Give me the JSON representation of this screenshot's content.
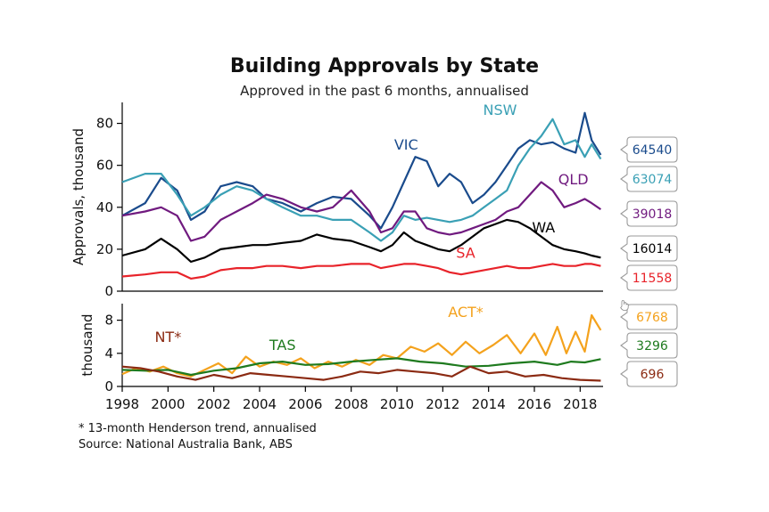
{
  "header": {
    "title": "Building Approvals by State",
    "subtitle": "Approved in the past 6 months, annualised"
  },
  "footer": {
    "note": "* 13-month Henderson trend, annualised",
    "source": "Source: National Australia Bank, ABS"
  },
  "colors": {
    "NSW": "#3aa0b5",
    "VIC": "#1a4b8c",
    "QLD": "#701a7f",
    "WA": "#000000",
    "SA": "#e8232a",
    "ACT": "#f4a21d",
    "TAS": "#1e7a1e",
    "NT": "#8b2a12"
  },
  "chart_data": [
    {
      "type": "line",
      "panel": "top",
      "ylabel": "Approvals, thousand",
      "xlim": [
        1998,
        2019
      ],
      "ylim": [
        0,
        90
      ],
      "yticks": [
        0,
        20,
        40,
        60,
        80
      ],
      "xticks": [
        1998,
        2000,
        2002,
        2004,
        2006,
        2008,
        2010,
        2012,
        2014,
        2016,
        2018
      ],
      "series": [
        {
          "name": "VIC",
          "latest": "64540",
          "label_x": 2010.4,
          "label_y": 67.5,
          "x": [
            1998,
            1999,
            1999.7,
            2000.4,
            2001,
            2001.6,
            2002.3,
            2003,
            2003.7,
            2004.3,
            2005,
            2005.8,
            2006.5,
            2007.2,
            2008,
            2008.8,
            2009.3,
            2009.8,
            2010.3,
            2010.8,
            2011.3,
            2011.8,
            2012.3,
            2012.8,
            2013.3,
            2013.8,
            2014.3,
            2014.8,
            2015.3,
            2015.8,
            2016.3,
            2016.8,
            2017.3,
            2017.8,
            2018.2,
            2018.5,
            2018.9
          ],
          "values": [
            36,
            42,
            54,
            48,
            34,
            38,
            50,
            52,
            50,
            44,
            42,
            38,
            42,
            45,
            44,
            36,
            30,
            40,
            52,
            64,
            62,
            50,
            56,
            52,
            42,
            46,
            52,
            60,
            68,
            72,
            70,
            71,
            68,
            66,
            85,
            72,
            65
          ]
        },
        {
          "name": "NSW",
          "latest": "63074",
          "label_x": 2014.5,
          "label_y": 84,
          "x": [
            1998,
            1999,
            1999.7,
            2000.4,
            2001,
            2001.6,
            2002.3,
            2003,
            2003.7,
            2004.3,
            2005,
            2005.8,
            2006.5,
            2007.2,
            2008,
            2008.8,
            2009.3,
            2009.8,
            2010.3,
            2010.8,
            2011.3,
            2011.8,
            2012.3,
            2012.8,
            2013.3,
            2013.8,
            2014.3,
            2014.8,
            2015.3,
            2015.8,
            2016.3,
            2016.8,
            2017.3,
            2017.8,
            2018.2,
            2018.5,
            2018.9
          ],
          "values": [
            52,
            56,
            56,
            46,
            36,
            40,
            46,
            50,
            48,
            44,
            40,
            36,
            36,
            34,
            34,
            28,
            24,
            28,
            36,
            34,
            35,
            34,
            33,
            34,
            36,
            40,
            44,
            48,
            60,
            68,
            74,
            82,
            70,
            72,
            64,
            70,
            63
          ]
        },
        {
          "name": "QLD",
          "latest": "39018",
          "label_x": 2017.7,
          "label_y": 51,
          "x": [
            1998,
            1999,
            1999.7,
            2000.4,
            2001,
            2001.6,
            2002.3,
            2003,
            2003.7,
            2004.3,
            2005,
            2005.8,
            2006.5,
            2007.2,
            2008,
            2008.8,
            2009.3,
            2009.8,
            2010.3,
            2010.8,
            2011.3,
            2011.8,
            2012.3,
            2012.8,
            2013.3,
            2013.8,
            2014.3,
            2014.8,
            2015.3,
            2015.8,
            2016.3,
            2016.8,
            2017.3,
            2017.8,
            2018.2,
            2018.5,
            2018.9
          ],
          "values": [
            36,
            38,
            40,
            36,
            24,
            26,
            34,
            38,
            42,
            46,
            44,
            40,
            38,
            40,
            48,
            38,
            28,
            30,
            38,
            38,
            30,
            28,
            27,
            28,
            30,
            32,
            34,
            38,
            40,
            46,
            52,
            48,
            40,
            42,
            44,
            42,
            39
          ]
        },
        {
          "name": "WA",
          "latest": "16014",
          "label_x": 2016.4,
          "label_y": 28,
          "x": [
            1998,
            1999,
            1999.7,
            2000.4,
            2001,
            2001.6,
            2002.3,
            2003,
            2003.7,
            2004.3,
            2005,
            2005.8,
            2006.5,
            2007.2,
            2008,
            2008.8,
            2009.3,
            2009.8,
            2010.3,
            2010.8,
            2011.3,
            2011.8,
            2012.3,
            2012.8,
            2013.3,
            2013.8,
            2014.3,
            2014.8,
            2015.3,
            2015.8,
            2016.3,
            2016.8,
            2017.3,
            2017.8,
            2018.2,
            2018.5,
            2018.9
          ],
          "values": [
            17,
            20,
            25,
            20,
            14,
            16,
            20,
            21,
            22,
            22,
            23,
            24,
            27,
            25,
            24,
            21,
            19,
            22,
            28,
            24,
            22,
            20,
            19,
            22,
            26,
            30,
            32,
            34,
            33,
            30,
            26,
            22,
            20,
            19,
            18,
            17,
            16
          ]
        },
        {
          "name": "SA",
          "latest": "11558",
          "label_x": 2013.0,
          "label_y": 16,
          "x": [
            1998,
            1999,
            1999.7,
            2000.4,
            2001,
            2001.6,
            2002.3,
            2003,
            2003.7,
            2004.3,
            2005,
            2005.8,
            2006.5,
            2007.2,
            2008,
            2008.8,
            2009.3,
            2009.8,
            2010.3,
            2010.8,
            2011.3,
            2011.8,
            2012.3,
            2012.8,
            2013.3,
            2013.8,
            2014.3,
            2014.8,
            2015.3,
            2015.8,
            2016.3,
            2016.8,
            2017.3,
            2017.8,
            2018.2,
            2018.5,
            2018.9
          ],
          "values": [
            7,
            8,
            9,
            9,
            6,
            7,
            10,
            11,
            11,
            12,
            12,
            11,
            12,
            12,
            13,
            13,
            11,
            12,
            13,
            13,
            12,
            11,
            9,
            8,
            9,
            10,
            11,
            12,
            11,
            11,
            12,
            13,
            12,
            12,
            13,
            13,
            12
          ]
        }
      ]
    },
    {
      "type": "line",
      "panel": "bottom",
      "ylabel": "thousand",
      "xlim": [
        1998,
        2019
      ],
      "ylim": [
        0,
        10
      ],
      "yticks": [
        0,
        4,
        8
      ],
      "xticks": [
        1998,
        2000,
        2002,
        2004,
        2006,
        2008,
        2010,
        2012,
        2014,
        2016,
        2018
      ],
      "series": [
        {
          "name": "ACT*",
          "latest": "6768",
          "label_x": 2013.0,
          "label_y": 8.4,
          "x": [
            1998,
            1998.6,
            1999.2,
            1999.8,
            2000.4,
            2001,
            2001.6,
            2002.2,
            2002.8,
            2003.4,
            2004,
            2004.6,
            2005.2,
            2005.8,
            2006.4,
            2007,
            2007.6,
            2008.2,
            2008.8,
            2009.4,
            2010,
            2010.6,
            2011.2,
            2011.8,
            2012.4,
            2013,
            2013.6,
            2014.2,
            2014.8,
            2015.4,
            2016,
            2016.5,
            2017,
            2017.4,
            2017.8,
            2018.2,
            2018.5,
            2018.9
          ],
          "values": [
            1.5,
            2.2,
            1.8,
            2.4,
            1.6,
            1.2,
            2.0,
            2.8,
            1.6,
            3.6,
            2.4,
            3.0,
            2.6,
            3.4,
            2.2,
            3.0,
            2.4,
            3.2,
            2.6,
            3.8,
            3.4,
            4.8,
            4.2,
            5.2,
            3.8,
            5.4,
            4.0,
            5.0,
            6.2,
            4.0,
            6.4,
            3.8,
            7.2,
            4.0,
            6.6,
            4.2,
            8.6,
            6.8
          ]
        },
        {
          "name": "TAS",
          "latest": "3296",
          "label_x": 2005.0,
          "label_y": 4.4,
          "x": [
            1998,
            1999,
            2000,
            2001,
            2002,
            2003,
            2004,
            2005,
            2006,
            2007,
            2008,
            2009,
            2010,
            2011,
            2012,
            2013,
            2014,
            2015,
            2016,
            2017,
            2017.6,
            2018.2,
            2018.9
          ],
          "values": [
            2.0,
            1.9,
            2.0,
            1.4,
            1.9,
            2.2,
            2.8,
            3.0,
            2.6,
            2.7,
            3.0,
            3.2,
            3.4,
            3.0,
            2.8,
            2.4,
            2.5,
            2.8,
            3.0,
            2.6,
            3.0,
            2.9,
            3.3
          ]
        },
        {
          "name": "NT*",
          "latest": "696",
          "label_x": 2000.0,
          "label_y": 5.4,
          "x": [
            1998,
            1998.8,
            1999.6,
            2000.4,
            2001.2,
            2002,
            2002.8,
            2003.6,
            2004.4,
            2005.2,
            2006,
            2006.8,
            2007.6,
            2008.4,
            2009.2,
            2010,
            2010.8,
            2011.6,
            2012.4,
            2013.2,
            2014,
            2014.8,
            2015.6,
            2016.4,
            2017.2,
            2018,
            2018.9
          ],
          "values": [
            2.4,
            2.2,
            1.8,
            1.2,
            0.8,
            1.4,
            1.0,
            1.6,
            1.4,
            1.2,
            1.0,
            0.8,
            1.2,
            1.8,
            1.6,
            2.0,
            1.8,
            1.6,
            1.2,
            2.4,
            1.6,
            1.8,
            1.2,
            1.4,
            1.0,
            0.8,
            0.7
          ]
        }
      ]
    }
  ]
}
